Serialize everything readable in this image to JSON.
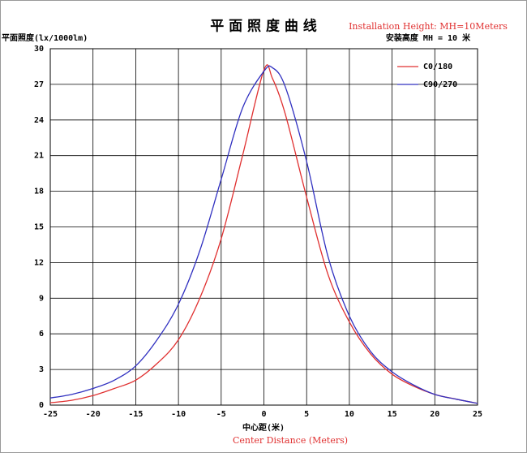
{
  "chart_data": {
    "type": "line",
    "title": "平 面 照 度 曲 线",
    "subtitle_en": "Installation Height: MH=10Meters",
    "subtitle_cn": "安装高度 MH = 10 米",
    "ylabel": "平面照度(lx/1000lm)",
    "xlabel": "中心距(米)",
    "xlabel_en": "Center Distance (Meters)",
    "x": [
      -25,
      -22.5,
      -20,
      -17.5,
      -15,
      -12.5,
      -10,
      -7.5,
      -5,
      -2.5,
      0,
      1,
      2.5,
      5,
      7.5,
      10,
      12.5,
      15,
      17.5,
      20,
      22.5,
      25
    ],
    "series": [
      {
        "name": "C0/180",
        "color": "#e03030",
        "values": [
          0.2,
          0.4,
          0.8,
          1.4,
          2.1,
          3.5,
          5.5,
          9,
          14,
          21,
          28.2,
          27.5,
          24.5,
          17.5,
          11,
          7,
          4.3,
          2.6,
          1.6,
          0.9,
          0.5,
          0.15
        ]
      },
      {
        "name": "C90/270",
        "color": "#3030c0",
        "values": [
          0.6,
          0.9,
          1.4,
          2.1,
          3.3,
          5.5,
          8.5,
          13,
          19,
          25,
          28.1,
          28.4,
          26.8,
          20.5,
          12.5,
          7.5,
          4.5,
          2.8,
          1.7,
          0.9,
          0.5,
          0.15
        ]
      }
    ],
    "xlim": [
      -25,
      25
    ],
    "ylim": [
      0,
      30
    ],
    "xticks": [
      -25,
      -20,
      -15,
      -10,
      -5,
      0,
      5,
      10,
      15,
      20,
      25
    ],
    "yticks": [
      0,
      3,
      6,
      9,
      12,
      15,
      18,
      21,
      24,
      27,
      30
    ],
    "grid": true,
    "legend": "upper right"
  }
}
